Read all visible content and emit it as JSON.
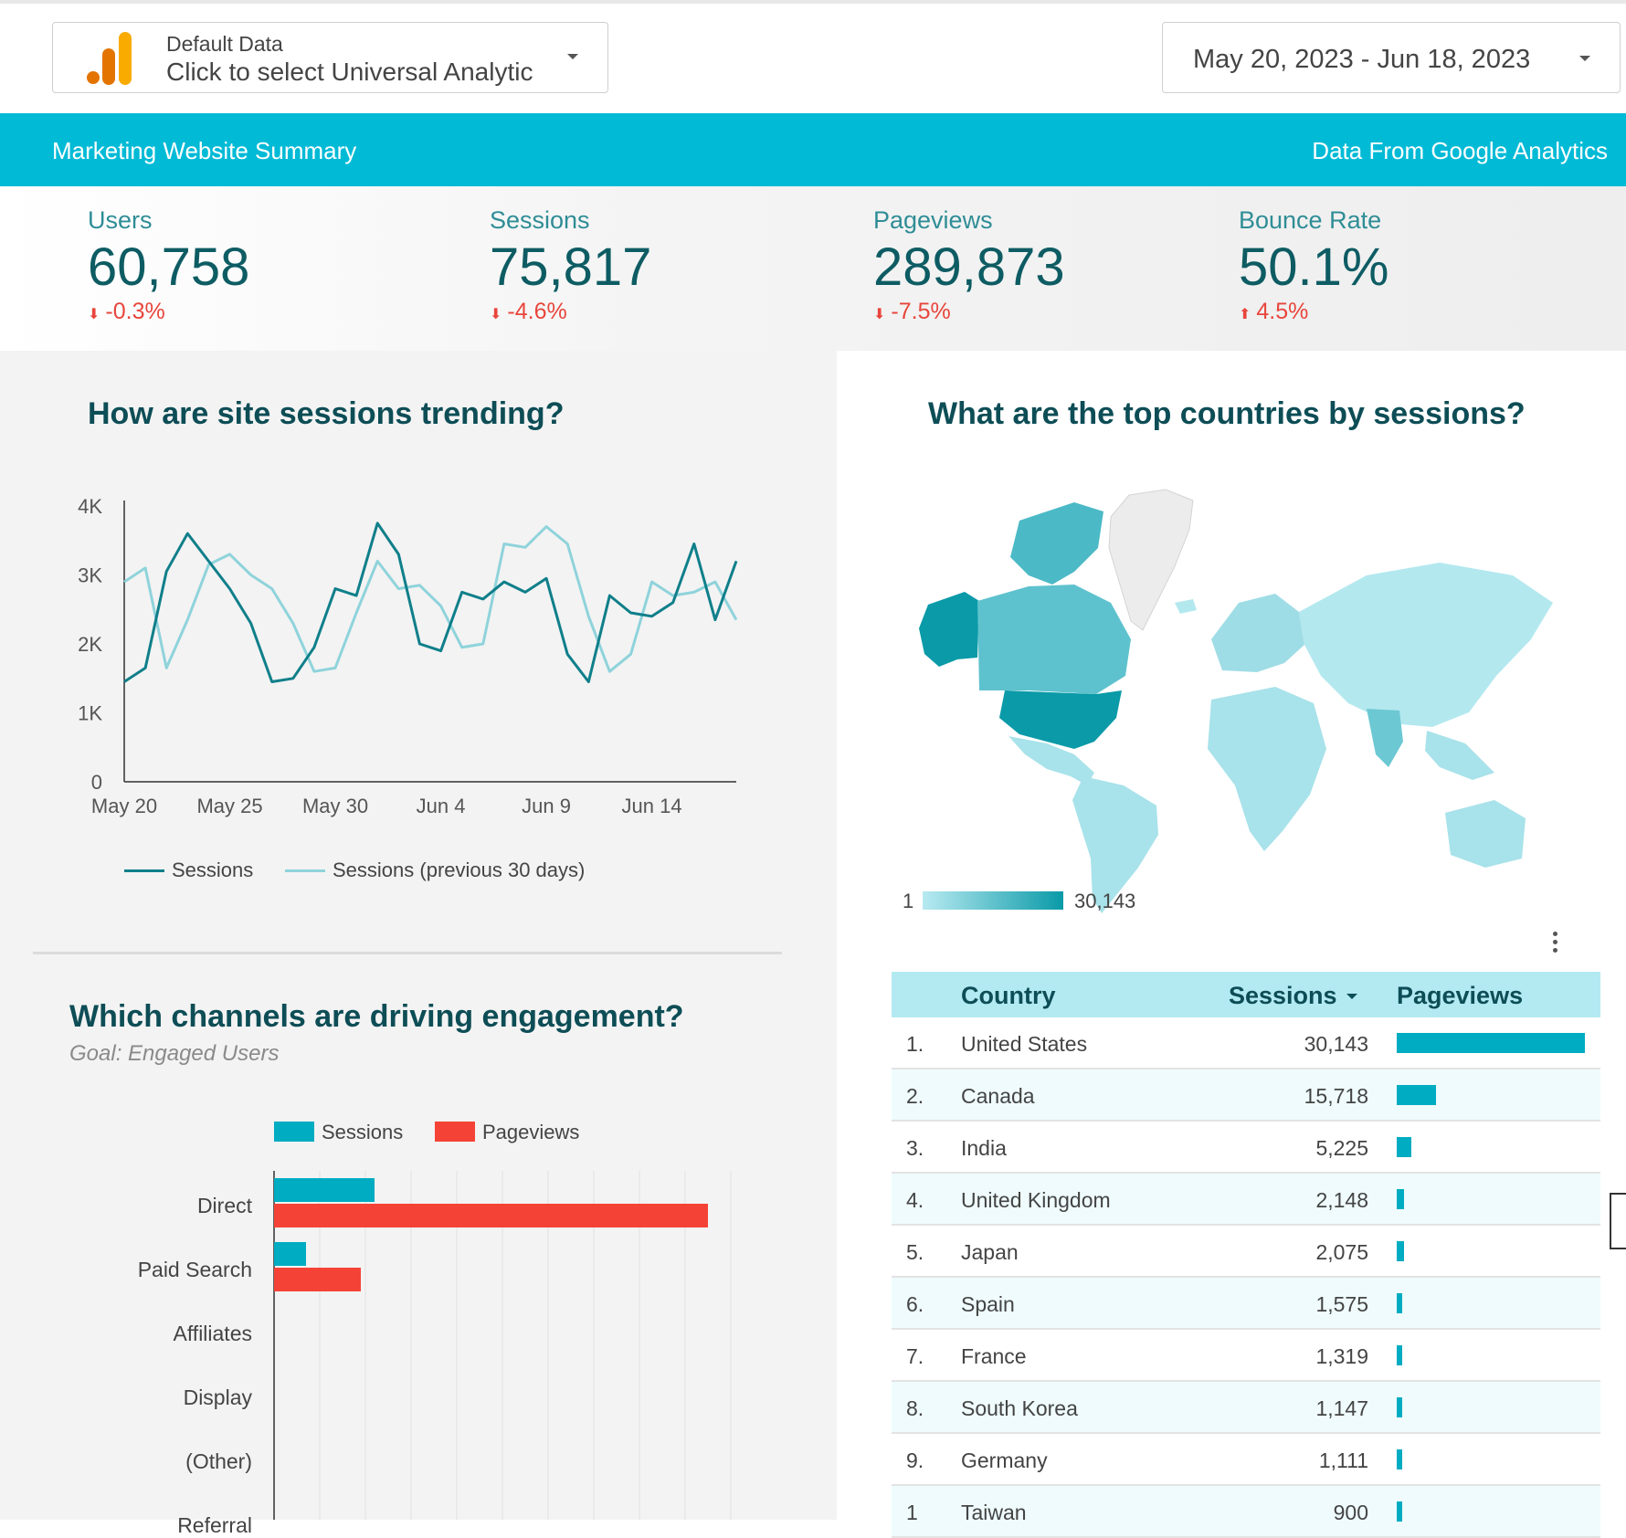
{
  "data_source": {
    "name": "Default Data",
    "value": "Click to select Universal Analytic"
  },
  "date_range": "May 20, 2023 - Jun 18, 2023",
  "banner": {
    "title": "Marketing Website Summary",
    "source": "Data From Google Analytics"
  },
  "kpis": [
    {
      "label": "Users",
      "value": "60,758",
      "delta": "-0.3%",
      "direction": "down"
    },
    {
      "label": "Sessions",
      "value": "75,817",
      "delta": "-4.6%",
      "direction": "down"
    },
    {
      "label": "Pageviews",
      "value": "289,873",
      "delta": "-7.5%",
      "direction": "down"
    },
    {
      "label": "Bounce Rate",
      "value": "50.1%",
      "delta": "4.5%",
      "direction": "up"
    }
  ],
  "colors": {
    "accent": "#00bad6",
    "dark_teal": "#0f7f8a",
    "light_teal": "#8fd3db",
    "negative": "#e8453c",
    "bar_sessions": "#00acc1",
    "bar_pageviews": "#f44336"
  },
  "trend": {
    "title": "How are site sessions trending?",
    "legend": [
      "Sessions",
      "Sessions (previous 30 days)"
    ]
  },
  "channels": {
    "title": "Which channels are driving engagement?",
    "subtitle": "Goal: Engaged Users",
    "legend": [
      "Sessions",
      "Pageviews"
    ]
  },
  "countries": {
    "title": "What are the top countries by sessions?",
    "scale_min": "1",
    "scale_max": "30,143",
    "table": {
      "headers": {
        "country": "Country",
        "sessions": "Sessions",
        "pageviews": "Pageviews"
      },
      "rows": [
        {
          "rank": "1.",
          "country": "United States",
          "sessions": "30,143",
          "pageviews_rel": 1.0
        },
        {
          "rank": "2.",
          "country": "Canada",
          "sessions": "15,718",
          "pageviews_rel": 0.21
        },
        {
          "rank": "3.",
          "country": "India",
          "sessions": "5,225",
          "pageviews_rel": 0.08
        },
        {
          "rank": "4.",
          "country": "United Kingdom",
          "sessions": "2,148",
          "pageviews_rel": 0.04
        },
        {
          "rank": "5.",
          "country": "Japan",
          "sessions": "2,075",
          "pageviews_rel": 0.04
        },
        {
          "rank": "6.",
          "country": "Spain",
          "sessions": "1,575",
          "pageviews_rel": 0.03
        },
        {
          "rank": "7.",
          "country": "France",
          "sessions": "1,319",
          "pageviews_rel": 0.03
        },
        {
          "rank": "8.",
          "country": "South Korea",
          "sessions": "1,147",
          "pageviews_rel": 0.03
        },
        {
          "rank": "9.",
          "country": "Germany",
          "sessions": "1,111",
          "pageviews_rel": 0.03
        },
        {
          "rank": "1",
          "country": "Taiwan",
          "sessions": "900",
          "pageviews_rel": 0.02
        }
      ]
    }
  },
  "chart_data": [
    {
      "type": "line",
      "title": "How are site sessions trending?",
      "x": [
        "May 20",
        "May 21",
        "May 22",
        "May 23",
        "May 24",
        "May 25",
        "May 26",
        "May 27",
        "May 28",
        "May 29",
        "May 30",
        "May 31",
        "Jun 1",
        "Jun 2",
        "Jun 3",
        "Jun 4",
        "Jun 5",
        "Jun 6",
        "Jun 7",
        "Jun 8",
        "Jun 9",
        "Jun 10",
        "Jun 11",
        "Jun 12",
        "Jun 13",
        "Jun 14",
        "Jun 15",
        "Jun 16",
        "Jun 17",
        "Jun 18"
      ],
      "x_tick_labels": [
        "May 20",
        "May 25",
        "May 30",
        "Jun 4",
        "Jun 9",
        "Jun 14"
      ],
      "y_tick_labels": [
        "0",
        "1K",
        "2K",
        "3K",
        "4K"
      ],
      "ylim": [
        0,
        4000
      ],
      "series": [
        {
          "name": "Sessions",
          "values": [
            1450,
            1650,
            3050,
            3600,
            3200,
            2800,
            2300,
            1450,
            1500,
            1950,
            2800,
            2700,
            3750,
            3300,
            2000,
            1900,
            2750,
            2650,
            2900,
            2750,
            2950,
            1850,
            1450,
            2700,
            2450,
            2400,
            2600,
            3450,
            2350,
            3200
          ]
        },
        {
          "name": "Sessions (previous 30 days)",
          "values": [
            2900,
            3100,
            1650,
            2350,
            3150,
            3300,
            3000,
            2800,
            2300,
            1600,
            1650,
            2450,
            3200,
            2800,
            2850,
            2550,
            1950,
            2000,
            3450,
            3400,
            3700,
            3450,
            2400,
            1600,
            1850,
            2900,
            2700,
            2750,
            2900,
            2350
          ]
        }
      ],
      "legend": "bottom"
    },
    {
      "type": "bar",
      "title": "Which channels are driving engagement?",
      "orientation": "horizontal",
      "categories": [
        "Direct",
        "Paid Search",
        "Affiliates",
        "Display",
        "(Other)",
        "Referral"
      ],
      "series": [
        {
          "name": "Sessions",
          "values": [
            22,
            7,
            0,
            0,
            0,
            0
          ]
        },
        {
          "name": "Pageviews",
          "values": [
            95,
            19,
            0,
            0,
            0,
            0
          ]
        }
      ],
      "xlim": [
        0,
        100
      ],
      "legend": "top"
    }
  ]
}
